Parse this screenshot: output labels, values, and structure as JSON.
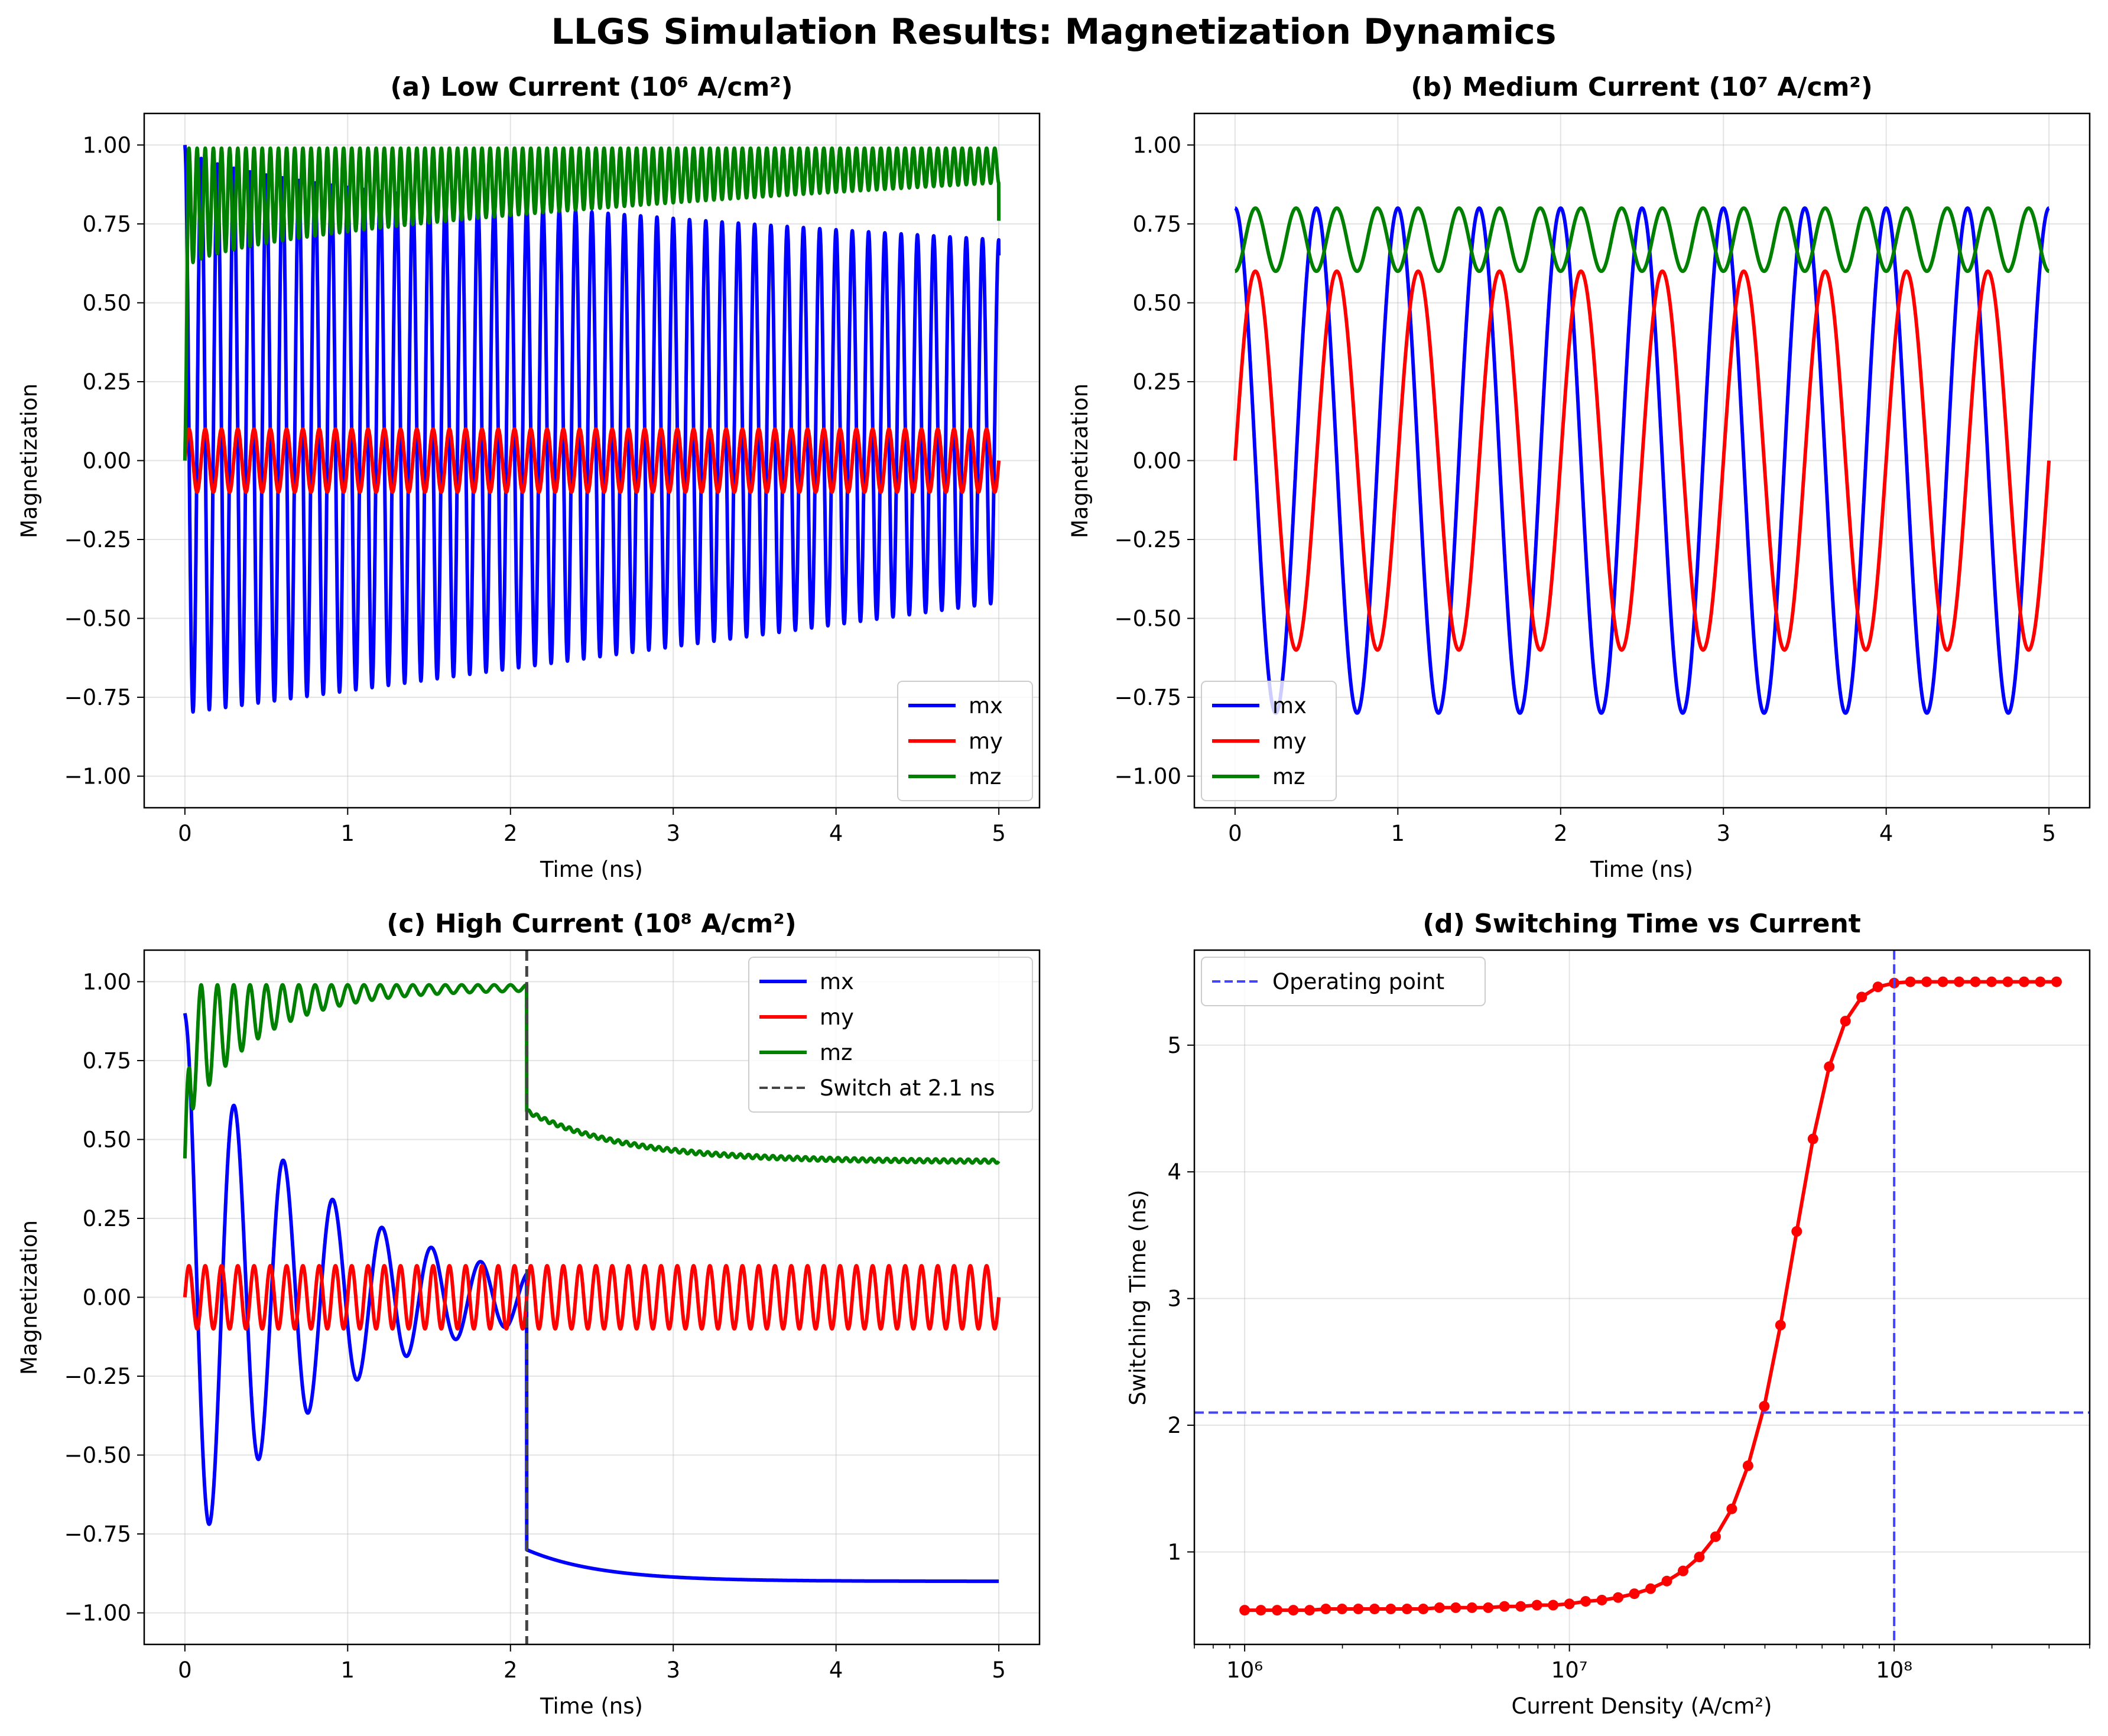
{
  "figure": {
    "title": "LLGS Simulation Results: Magnetization Dynamics"
  },
  "chart_data": [
    {
      "id": "a",
      "type": "line",
      "title": "(a) Low Current (10⁶ A/cm²)",
      "xlabel": "Time (ns)",
      "ylabel": "Magnetization",
      "xlim": [
        -0.25,
        5.25
      ],
      "ylim": [
        -1.1,
        1.1
      ],
      "xticks": [
        "0",
        "1",
        "2",
        "3",
        "4",
        "5"
      ],
      "yticks": [
        "1.00",
        "0.75",
        "0.50",
        "0.25",
        "0.00",
        "−0.25",
        "−0.50",
        "−0.75",
        "−1.00"
      ],
      "grid": true,
      "legend": "lower right",
      "series": [
        {
          "name": "mx",
          "color": "#0000ff",
          "model": "damped_cos",
          "t": [
            0,
            5
          ],
          "freq_per_ns": 10,
          "upper": [
            1.0,
            0.7
          ],
          "lower": [
            -0.8,
            -0.45
          ],
          "end_value": 0.65
        },
        {
          "name": "my",
          "color": "#ff0000",
          "model": "sin",
          "t": [
            0,
            5
          ],
          "freq_per_ns": 10,
          "amplitude": 0.1
        },
        {
          "name": "mz",
          "color": "#008000",
          "model": "band",
          "t": [
            0,
            5
          ],
          "freq_per_ns": 20,
          "upper": [
            0.99,
            0.99
          ],
          "lower": [
            0.6,
            0.88
          ],
          "start_value": 0.0,
          "end_value": 0.76
        }
      ]
    },
    {
      "id": "b",
      "type": "line",
      "title": "(b) Medium Current (10⁷ A/cm²)",
      "xlabel": "Time (ns)",
      "ylabel": "Magnetization",
      "xlim": [
        -0.25,
        5.25
      ],
      "ylim": [
        -1.1,
        1.1
      ],
      "xticks": [
        "0",
        "1",
        "2",
        "3",
        "4",
        "5"
      ],
      "yticks": [
        "1.00",
        "0.75",
        "0.50",
        "0.25",
        "0.00",
        "−0.25",
        "−0.50",
        "−0.75",
        "−1.00"
      ],
      "grid": true,
      "legend": "lower left",
      "series": [
        {
          "name": "mx",
          "color": "#0000ff",
          "model": "cos",
          "t": [
            0,
            5
          ],
          "freq_per_ns": 2,
          "amplitude": 0.8
        },
        {
          "name": "my",
          "color": "#ff0000",
          "model": "sin",
          "t": [
            0,
            5
          ],
          "freq_per_ns": 2,
          "amplitude": 0.6
        },
        {
          "name": "mz",
          "color": "#008000",
          "model": "band",
          "t": [
            0,
            5
          ],
          "freq_per_ns": 4,
          "upper": [
            0.8,
            0.8
          ],
          "lower": [
            0.6,
            0.6
          ],
          "start_value": 0.6,
          "end_value": 0.6
        }
      ]
    },
    {
      "id": "c",
      "type": "line",
      "title": "(c) High Current (10⁸ A/cm²)",
      "xlabel": "Time (ns)",
      "ylabel": "Magnetization",
      "xlim": [
        -0.25,
        5.25
      ],
      "ylim": [
        -1.1,
        1.1
      ],
      "xticks": [
        "0",
        "1",
        "2",
        "3",
        "4",
        "5"
      ],
      "yticks": [
        "1.00",
        "0.75",
        "0.50",
        "0.25",
        "0.00",
        "−0.25",
        "−0.50",
        "−0.75",
        "−1.00"
      ],
      "grid": true,
      "legend": "upper right",
      "switch_time": 2.1,
      "series": [
        {
          "name": "mx",
          "color": "#0000ff",
          "model": "switch_mx",
          "t": [
            0,
            5
          ],
          "freq_per_ns": 3.3,
          "start_value": 0.9,
          "osc_amplitude": 0.85,
          "decay_tau": 0.9,
          "after_switch": [
            -0.8,
            -0.9
          ]
        },
        {
          "name": "my",
          "color": "#ff0000",
          "model": "sin",
          "t": [
            0,
            5
          ],
          "freq_per_ns": 10,
          "amplitude": 0.1
        },
        {
          "name": "mz",
          "color": "#008000",
          "model": "switch_mz",
          "t": [
            0,
            5
          ],
          "freq_per_ns": 10,
          "start_value": 0.44,
          "before_switch": 0.99,
          "after_switch": [
            0.59,
            0.43
          ]
        },
        {
          "name": "Switch at 2.1 ns",
          "color": "#444444",
          "model": "vline",
          "x": 2.1,
          "dashed": true
        }
      ]
    },
    {
      "id": "d",
      "type": "line",
      "title": "(d) Switching Time vs Current",
      "xlabel": "Current Density (A/cm²)",
      "ylabel": "Switching Time (ns)",
      "xscale": "log",
      "xlim": [
        700000,
        400000000
      ],
      "ylim": [
        0.27,
        5.75
      ],
      "xticks": [
        "10⁶",
        "10⁷",
        "10⁸"
      ],
      "yticks": [
        "1",
        "2",
        "3",
        "4",
        "5"
      ],
      "grid": true,
      "legend": "upper left",
      "reference_lines": {
        "name": "Operating point",
        "x": 100000000,
        "y": 2.1,
        "color": "#4444ff",
        "dashed": true
      },
      "series": [
        {
          "name": "",
          "color": "#ff0000",
          "marker": "circle",
          "x": [
            1000000,
            1122018,
            1258925,
            1412538,
            1584893,
            1778279,
            1995262,
            2238721,
            2511886,
            2818383,
            3162278,
            3548134,
            3981072,
            4466836,
            5011872,
            5623413,
            6309573,
            7079458,
            7943282,
            8912509,
            10000000,
            11220185,
            12589254,
            14125375,
            15848932,
            17782794,
            19952623,
            22387211,
            25118864,
            28183829,
            31622777,
            35481339,
            39810717,
            44668359,
            50118723,
            56234133,
            63095734,
            70794578,
            79432823,
            89125094,
            100000000,
            112201845,
            125892541,
            141253754,
            158489319,
            177827941,
            199526231,
            223872114,
            251188643,
            281838293,
            316227766
          ],
          "y": [
            0.54,
            0.54,
            0.54,
            0.54,
            0.54,
            0.55,
            0.55,
            0.55,
            0.55,
            0.55,
            0.55,
            0.55,
            0.56,
            0.56,
            0.56,
            0.56,
            0.57,
            0.57,
            0.58,
            0.58,
            0.59,
            0.61,
            0.62,
            0.64,
            0.67,
            0.71,
            0.77,
            0.85,
            0.96,
            1.12,
            1.34,
            1.68,
            2.15,
            2.79,
            3.53,
            4.26,
            4.83,
            5.19,
            5.38,
            5.46,
            5.49,
            5.5,
            5.5,
            5.5,
            5.5,
            5.5,
            5.5,
            5.5,
            5.5,
            5.5,
            5.5
          ]
        }
      ]
    }
  ]
}
